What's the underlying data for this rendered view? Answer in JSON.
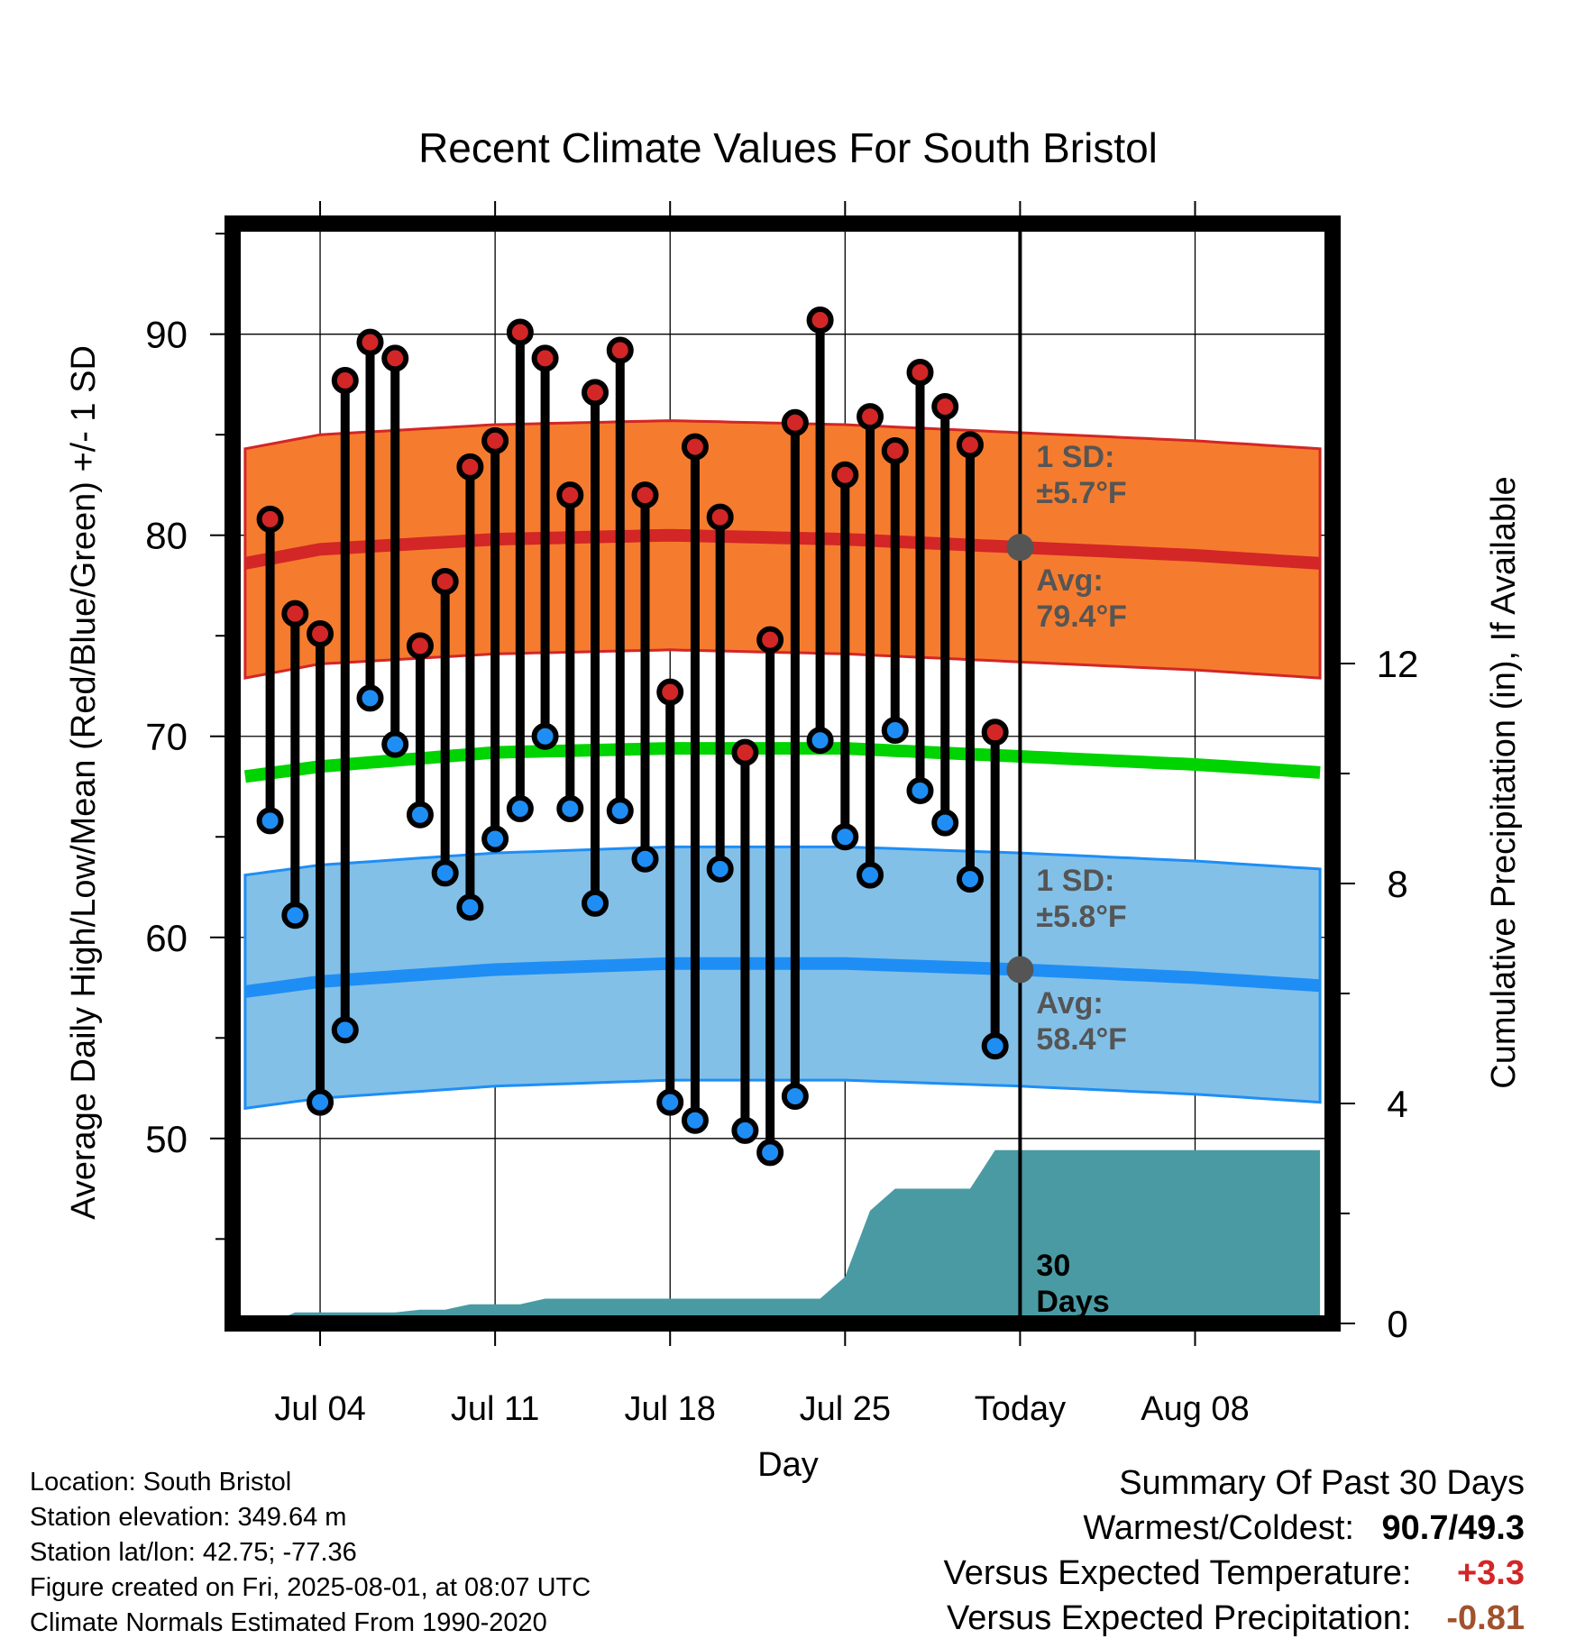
{
  "chart_data": {
    "type": "line",
    "title": "Recent Climate Values For South Bristol",
    "xlabel": "Day",
    "ylabel": "Average Daily High/Low/Mean (Red/Blue/Green) +/- 1 SD",
    "y2label": "Cumulative Precipitation (in), If Available",
    "ylim": [
      40.8,
      95.5
    ],
    "y2lim": [
      0,
      20
    ],
    "xlim": [
      -3.5,
      40.5
    ],
    "yticks": [
      50,
      60,
      70,
      80,
      90
    ],
    "y2ticks": [
      0,
      4,
      8,
      12
    ],
    "xticks": [
      {
        "day": 0,
        "label": "Jul 04"
      },
      {
        "day": 7,
        "label": "Jul 11"
      },
      {
        "day": 14,
        "label": "Jul 18"
      },
      {
        "day": 21,
        "label": "Jul 25"
      },
      {
        "day": 28,
        "label": "Today"
      },
      {
        "day": 35,
        "label": "Aug 08"
      }
    ],
    "grid": true,
    "today_day": 28,
    "normals": {
      "day": [
        -3,
        0,
        7,
        14,
        21,
        28,
        35,
        40
      ],
      "high_avg": [
        78.6,
        79.3,
        79.8,
        80.0,
        79.8,
        79.4,
        79.0,
        78.6
      ],
      "high_sd": 5.7,
      "low_avg": [
        57.3,
        57.8,
        58.4,
        58.7,
        58.7,
        58.4,
        58.0,
        57.6
      ],
      "low_sd": 5.8,
      "mean_avg": [
        68.0,
        68.5,
        69.2,
        69.4,
        69.4,
        69.0,
        68.6,
        68.2
      ]
    },
    "series": [
      {
        "name": "High",
        "day": [
          -2,
          -1,
          0,
          1,
          2,
          3,
          4,
          5,
          6,
          7,
          8,
          9,
          10,
          11,
          12,
          13,
          14,
          15,
          16,
          17,
          18,
          19,
          20,
          21,
          22,
          23,
          24,
          25,
          26,
          27
        ],
        "values": [
          80.8,
          76.1,
          75.1,
          87.7,
          89.6,
          88.8,
          74.5,
          77.7,
          83.4,
          84.7,
          90.1,
          88.8,
          82.0,
          87.1,
          89.2,
          82.0,
          72.2,
          84.4,
          80.9,
          69.2,
          74.8,
          85.6,
          90.7,
          83.0,
          85.9,
          84.2,
          88.1,
          86.4,
          84.5,
          70.2
        ]
      },
      {
        "name": "Low",
        "day": [
          -2,
          -1,
          0,
          1,
          2,
          3,
          4,
          5,
          6,
          7,
          8,
          9,
          10,
          11,
          12,
          13,
          14,
          15,
          16,
          17,
          18,
          19,
          20,
          21,
          22,
          23,
          24,
          25,
          26,
          27
        ],
        "values": [
          65.8,
          61.1,
          51.8,
          55.4,
          71.9,
          69.6,
          66.1,
          63.2,
          61.5,
          64.9,
          66.4,
          70.0,
          66.4,
          61.7,
          66.3,
          63.9,
          51.8,
          50.9,
          63.4,
          50.4,
          49.3,
          52.1,
          69.8,
          65.0,
          63.1,
          70.3,
          67.3,
          65.7,
          62.9,
          54.6
        ]
      },
      {
        "name": "Precipitation",
        "day": [
          -3,
          -2,
          -1,
          0,
          1,
          2,
          3,
          4,
          5,
          6,
          7,
          8,
          9,
          10,
          11,
          12,
          13,
          14,
          15,
          16,
          17,
          18,
          19,
          20,
          21,
          22,
          23,
          24,
          25,
          26,
          27,
          28,
          40
        ],
        "values": [
          0.0,
          0.0,
          0.2,
          0.2,
          0.2,
          0.2,
          0.2,
          0.25,
          0.25,
          0.35,
          0.35,
          0.35,
          0.45,
          0.45,
          0.45,
          0.45,
          0.45,
          0.45,
          0.45,
          0.45,
          0.45,
          0.45,
          0.45,
          0.45,
          0.85,
          2.05,
          2.45,
          2.45,
          2.45,
          2.45,
          3.15,
          3.15,
          3.15
        ]
      }
    ],
    "annotations": {
      "high_sd_label": [
        "1 SD:",
        "±5.7°F"
      ],
      "high_avg_label": [
        "Avg:",
        "79.4°F"
      ],
      "low_sd_label": [
        "1 SD:",
        "±5.8°F"
      ],
      "low_avg_label": [
        "Avg:",
        "58.4°F"
      ],
      "period_label": [
        "30",
        "Days"
      ]
    }
  },
  "info": {
    "location": "Location: South Bristol",
    "elevation": "Station elevation: 349.64 m",
    "latlon": "Station lat/lon: 42.75; -77.36",
    "created": "Figure created on Fri, 2025-08-01, at 08:07 UTC",
    "normals": "Climate Normals Estimated From 1990-2020"
  },
  "summary": {
    "title": "Summary Of Past 30 Days",
    "warm_cold_label": "Warmest/Coldest:",
    "warm_cold_value": "90.7/49.3",
    "temp_label": "Versus Expected Temperature:",
    "temp_value": "+3.3",
    "precip_label": "Versus Expected Precipitation:",
    "precip_value": "-0.81"
  },
  "colors": {
    "high_band": "#f57c2e",
    "high_line": "#d32626",
    "low_band": "#82c0e8",
    "low_line": "#1e8ef5",
    "mean_line": "#00d400",
    "precip_fill": "#4a9aa3",
    "annotation": "#555555",
    "temp_anomaly": "#d32626",
    "precip_anomaly": "#a0522d"
  }
}
